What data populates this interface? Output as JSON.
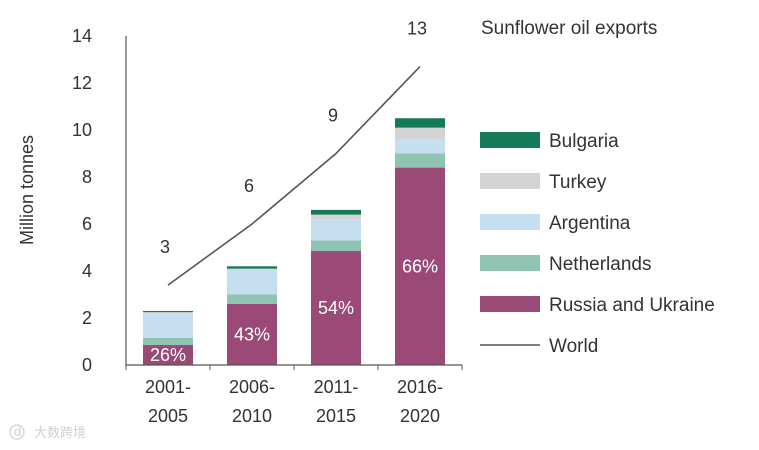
{
  "chart_data": {
    "type": "bar",
    "stacked": true,
    "title": "Sunflower oil exports",
    "ylabel": "Million tonnes",
    "xlabel": "",
    "ylim": [
      0,
      14
    ],
    "yticks": [
      0,
      2,
      4,
      6,
      8,
      10,
      12,
      14
    ],
    "categories": [
      {
        "line1": "2001-",
        "line2": "2005"
      },
      {
        "line1": "2006-",
        "line2": "2010"
      },
      {
        "line1": "2011-",
        "line2": "2015"
      },
      {
        "line1": "2016-",
        "line2": "2020"
      }
    ],
    "series": [
      {
        "name": "Russia and Ukraine",
        "color": "#9b4a77",
        "values": [
          0.85,
          2.6,
          4.85,
          8.4
        ]
      },
      {
        "name": "Netherlands",
        "color": "#8fc3b2",
        "values": [
          0.3,
          0.4,
          0.45,
          0.6
        ]
      },
      {
        "name": "Argentina",
        "color": "#c5def0",
        "values": [
          1.05,
          1.05,
          0.9,
          0.6
        ]
      },
      {
        "name": "Turkey",
        "color": "#d4d4d4",
        "values": [
          0.05,
          0.05,
          0.2,
          0.5
        ]
      },
      {
        "name": "Bulgaria",
        "color": "#137a55",
        "values": [
          0.05,
          0.1,
          0.2,
          0.4
        ]
      }
    ],
    "share_labels": [
      "26%",
      "43%",
      "54%",
      "66%"
    ],
    "world": {
      "name": "World",
      "color": "#555555",
      "values": [
        3.4,
        6,
        9,
        12.7
      ],
      "labels": [
        "3",
        "6",
        "9",
        "13"
      ]
    },
    "legend_order": [
      "Bulgaria",
      "Turkey",
      "Argentina",
      "Netherlands",
      "Russia and Ukraine",
      "World"
    ],
    "legend_position": "right"
  },
  "watermark": {
    "text": "大数跨境",
    "logo_text": "d"
  }
}
